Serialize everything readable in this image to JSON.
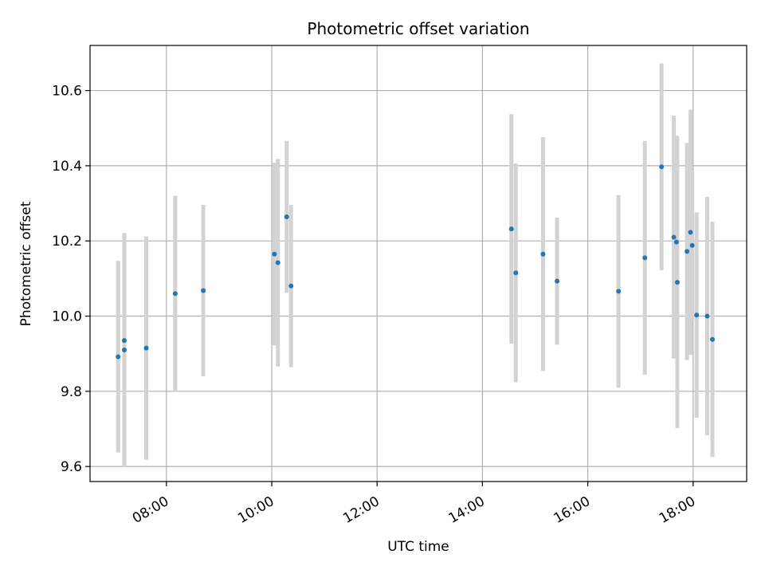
{
  "chart_data": {
    "type": "scatter",
    "title": "Photometric offset variation",
    "xlabel": "UTC time",
    "ylabel": "Photometric offset",
    "x_tick_labels": [
      "08:00",
      "10:00",
      "12:00",
      "14:00",
      "16:00",
      "18:00"
    ],
    "y_tick_labels": [
      "9.6",
      "9.8",
      "10.0",
      "10.2",
      "10.4",
      "10.6"
    ],
    "xlim": [
      "06:33",
      "19:01"
    ],
    "ylim": [
      9.56,
      10.72
    ],
    "grid": true,
    "legend": false,
    "colors": {
      "point": "#1f77b4",
      "errorbar": "#d3d3d3",
      "grid": "#b0b0b0"
    },
    "series": [
      {
        "x": [
          "07:05",
          "07:12",
          "07:12",
          "07:37",
          "08:10",
          "08:42",
          "10:03",
          "10:07",
          "10:17",
          "10:22",
          "14:33",
          "14:38",
          "15:09",
          "15:25",
          "16:35",
          "17:05",
          "17:24",
          "17:38",
          "17:41",
          "17:42",
          "17:53",
          "17:57",
          "17:59",
          "18:04",
          "18:16",
          "18:22"
        ],
        "y": [
          9.892,
          9.935,
          9.91,
          9.915,
          10.06,
          10.068,
          10.165,
          10.142,
          10.264,
          10.08,
          10.232,
          10.115,
          10.165,
          10.093,
          10.066,
          10.155,
          10.397,
          10.21,
          10.197,
          10.09,
          10.172,
          10.223,
          10.188,
          10.003,
          10.0,
          9.938
        ],
        "err": [
          0.255,
          0.285,
          0.311,
          0.297,
          0.26,
          0.228,
          0.243,
          0.276,
          0.202,
          0.216,
          0.305,
          0.291,
          0.311,
          0.169,
          0.256,
          0.311,
          0.275,
          0.323,
          0.283,
          0.388,
          0.289,
          0.326,
          0.198,
          0.273,
          0.317,
          0.313
        ]
      }
    ]
  }
}
